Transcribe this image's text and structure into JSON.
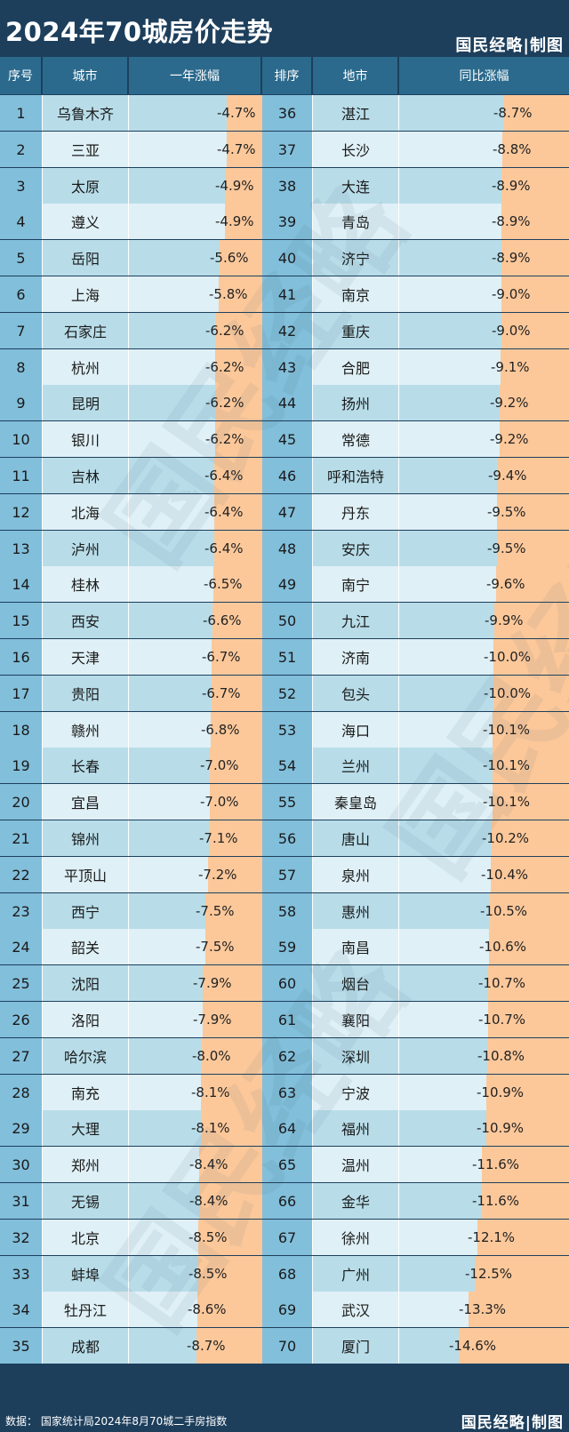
{
  "title": "2024年70城房价走势",
  "brand": "国民经略|制图",
  "source": "数据：  国家统计局2024年8月70城二手房指数",
  "watermark": "国民经略",
  "headers": {
    "left": [
      "序号",
      "城市",
      "一年涨幅"
    ],
    "right": [
      "排序",
      "地市",
      "同比涨幅"
    ]
  },
  "colors": {
    "header_bg": "#1d3f5c",
    "column_header_bg": "#2b6a8d",
    "rank_bg": "#82bfdb",
    "row_light": "#dff0f6",
    "row_mid": "#b8dde9",
    "bar": "#fcc89a"
  },
  "chart_data": {
    "type": "bar",
    "orientation": "horizontal",
    "unit": "%",
    "value_format": "one decimal with % sign",
    "categories": [
      "乌鲁木齐",
      "三亚",
      "太原",
      "遵义",
      "岳阳",
      "上海",
      "石家庄",
      "杭州",
      "昆明",
      "银川",
      "吉林",
      "北海",
      "泸州",
      "桂林",
      "西安",
      "天津",
      "贵阳",
      "赣州",
      "长春",
      "宜昌",
      "锦州",
      "平顶山",
      "西宁",
      "韶关",
      "沈阳",
      "洛阳",
      "哈尔滨",
      "南充",
      "大理",
      "郑州",
      "无锡",
      "北京",
      "蚌埠",
      "牡丹江",
      "成都",
      "湛江",
      "长沙",
      "大连",
      "青岛",
      "济宁",
      "南京",
      "重庆",
      "合肥",
      "扬州",
      "常德",
      "呼和浩特",
      "丹东",
      "安庆",
      "南宁",
      "九江",
      "济南",
      "包头",
      "海口",
      "兰州",
      "秦皇岛",
      "唐山",
      "泉州",
      "惠州",
      "南昌",
      "烟台",
      "襄阳",
      "深圳",
      "宁波",
      "福州",
      "温州",
      "金华",
      "徐州",
      "广州",
      "武汉",
      "厦门"
    ],
    "values": [
      -4.7,
      -4.7,
      -4.9,
      -4.9,
      -5.6,
      -5.8,
      -6.2,
      -6.2,
      -6.2,
      -6.2,
      -6.4,
      -6.4,
      -6.4,
      -6.5,
      -6.6,
      -6.7,
      -6.7,
      -6.8,
      -7.0,
      -7.0,
      -7.1,
      -7.2,
      -7.5,
      -7.5,
      -7.9,
      -7.9,
      -8.0,
      -8.1,
      -8.1,
      -8.4,
      -8.4,
      -8.5,
      -8.5,
      -8.6,
      -8.7,
      -8.7,
      -8.8,
      -8.9,
      -8.9,
      -8.9,
      -9.0,
      -9.0,
      -9.1,
      -9.2,
      -9.2,
      -9.4,
      -9.5,
      -9.5,
      -9.6,
      -9.9,
      -10.0,
      -10.0,
      -10.1,
      -10.1,
      -10.1,
      -10.2,
      -10.4,
      -10.5,
      -10.6,
      -10.7,
      -10.7,
      -10.8,
      -10.9,
      -10.9,
      -11.6,
      -11.6,
      -12.1,
      -12.5,
      -13.3,
      -14.6
    ]
  }
}
